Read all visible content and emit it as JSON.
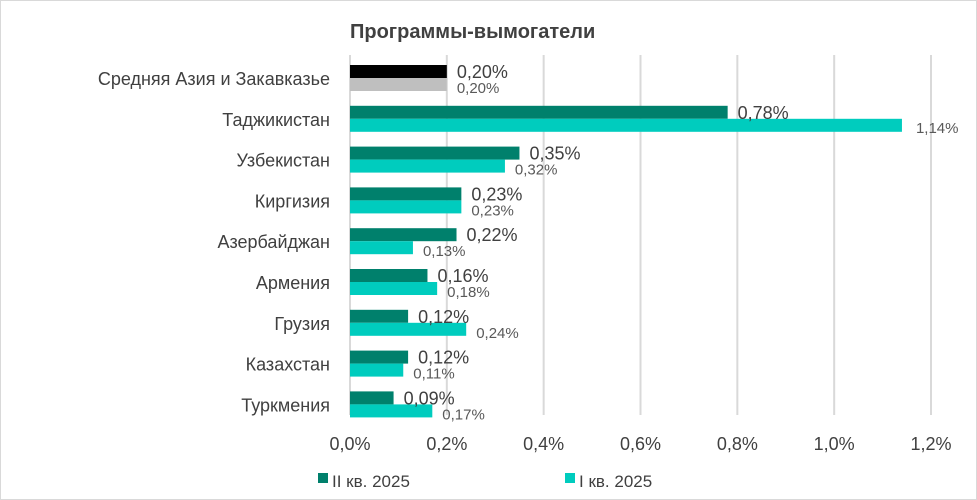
{
  "chart_data": {
    "type": "bar",
    "orientation": "horizontal",
    "title": "Программы-вымогатели",
    "categories": [
      "Средняя Азия и Закавказье",
      "Таджикистан",
      "Узбекистан",
      "Киргизия",
      "Азербайджан",
      "Армения",
      "Грузия",
      "Казахстан",
      "Туркмения"
    ],
    "series": [
      {
        "name": "II кв. 2025",
        "color": "#00806c",
        "highlight_color": "#000000",
        "values": [
          0.2,
          0.78,
          0.35,
          0.23,
          0.22,
          0.16,
          0.12,
          0.12,
          0.09
        ],
        "labels": [
          "0,20%",
          "0,78%",
          "0,35%",
          "0,23%",
          "0,22%",
          "0,16%",
          "0,12%",
          "0,12%",
          "0,09%"
        ]
      },
      {
        "name": "I кв. 2025",
        "color": "#00ccbe",
        "highlight_color": "#bfbfbf",
        "values": [
          0.2,
          1.14,
          0.32,
          0.23,
          0.13,
          0.18,
          0.24,
          0.11,
          0.17
        ],
        "labels": [
          "0,20%",
          "1,14%",
          "0,32%",
          "0,23%",
          "0,13%",
          "0,18%",
          "0,24%",
          "0,11%",
          "0,17%"
        ]
      }
    ],
    "xlim": [
      0,
      1.2
    ],
    "xticks": [
      0,
      0.2,
      0.4,
      0.6,
      0.8,
      1.0,
      1.2
    ],
    "xtick_labels": [
      "0,0%",
      "0,2%",
      "0,4%",
      "0,6%",
      "0,8%",
      "1,0%",
      "1,2%"
    ],
    "grid": true,
    "legend_position": "bottom"
  }
}
